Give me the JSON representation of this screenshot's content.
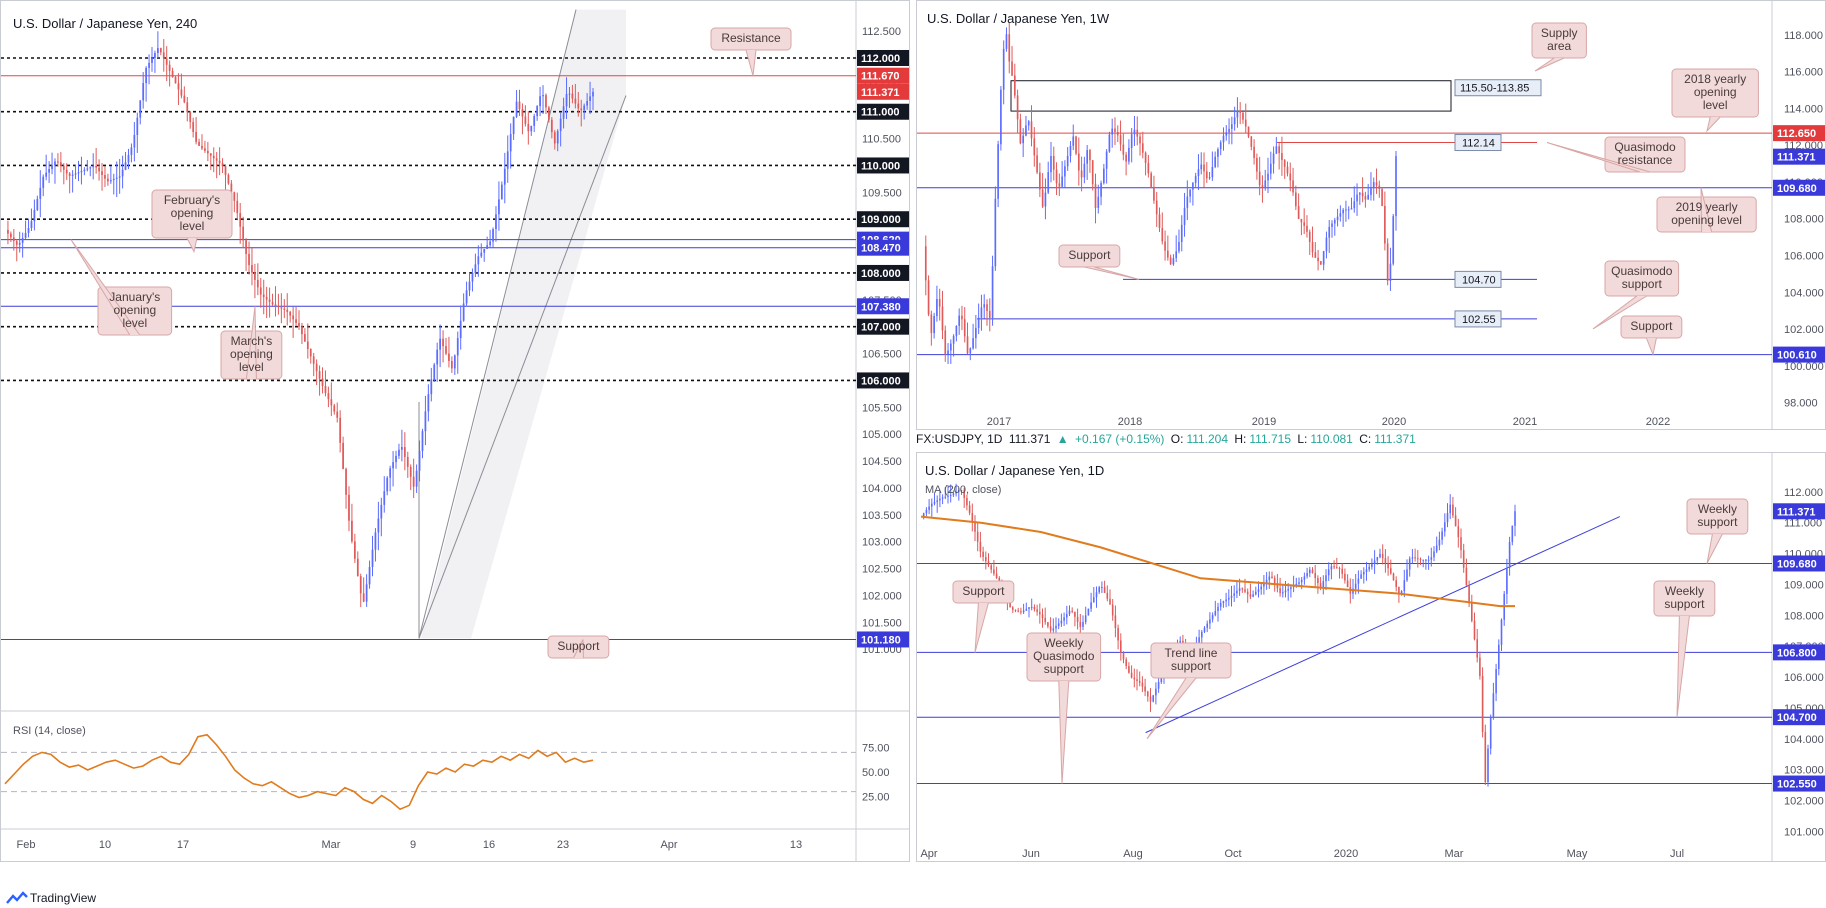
{
  "colors": {
    "bull": "#5b6cff",
    "bear": "#e05a5a",
    "resistance": "#e04848",
    "blue_level": "#3f3fd9",
    "dotted": "#111111",
    "annotation_bg": "#f2dada",
    "annotation_border": "#d8a6a6",
    "rsi": "#e07b1e",
    "ma": "#e07b1e",
    "channel_fill": "#f1f1f3"
  },
  "chart_data": [
    {
      "type": "candlestick",
      "title": "U.S. Dollar / Japanese Yen, 240",
      "ylim": [
        100.5,
        112.8
      ],
      "y_ticks": [
        "112.500",
        "112.000",
        "111.500",
        "111.000",
        "110.500",
        "110.000",
        "109.500",
        "109.000",
        "108.500",
        "108.000",
        "107.500",
        "107.000",
        "106.500",
        "106.000",
        "105.500",
        "105.000",
        "104.500",
        "104.000",
        "103.500",
        "103.000",
        "102.500",
        "102.000",
        "101.500",
        "101.000"
      ],
      "x_ticks": [
        "Feb",
        "10",
        "17",
        "Mar",
        "9",
        "16",
        "23",
        "Apr",
        "13"
      ],
      "price_path": [
        [
          0,
          108.8
        ],
        [
          3,
          108.5
        ],
        [
          6,
          108.9
        ],
        [
          9,
          109.8
        ],
        [
          12,
          110.1
        ],
        [
          15,
          109.8
        ],
        [
          18,
          109.9
        ],
        [
          21,
          110.0
        ],
        [
          24,
          109.7
        ],
        [
          27,
          109.8
        ],
        [
          30,
          110.4
        ],
        [
          33,
          111.8
        ],
        [
          36,
          112.2
        ],
        [
          39,
          111.7
        ],
        [
          42,
          111.2
        ],
        [
          45,
          110.4
        ],
        [
          48,
          110.2
        ],
        [
          51,
          110.0
        ],
        [
          54,
          109.3
        ],
        [
          57,
          108.2
        ],
        [
          60,
          107.6
        ],
        [
          63,
          107.4
        ],
        [
          66,
          107.3
        ],
        [
          69,
          107.0
        ],
        [
          72,
          106.4
        ],
        [
          75,
          105.8
        ],
        [
          78,
          105.3
        ],
        [
          81,
          103.2
        ],
        [
          84,
          101.8
        ],
        [
          87,
          103.2
        ],
        [
          90,
          104.3
        ],
        [
          93,
          104.8
        ],
        [
          96,
          104.0
        ],
        [
          99,
          105.6
        ],
        [
          102,
          106.8
        ],
        [
          105,
          106.2
        ],
        [
          108,
          107.6
        ],
        [
          111,
          108.3
        ],
        [
          114,
          108.6
        ],
        [
          117,
          109.8
        ],
        [
          120,
          111.2
        ],
        [
          123,
          110.6
        ],
        [
          126,
          111.4
        ],
        [
          129,
          110.4
        ],
        [
          132,
          111.4
        ],
        [
          135,
          111.0
        ],
        [
          138,
          111.37
        ]
      ],
      "levels": [
        {
          "label": "112.000",
          "value": 112.0,
          "style": "dotted",
          "tag": "dark"
        },
        {
          "label": "111.670",
          "value": 111.67,
          "style": "solid-red",
          "tag": "red"
        },
        {
          "label": "111.371",
          "value": 111.371,
          "style": "none",
          "tag": "red"
        },
        {
          "label": "111.000",
          "value": 111.0,
          "style": "dotted",
          "tag": "dark"
        },
        {
          "label": "110.000",
          "value": 110.0,
          "style": "dotted",
          "tag": "dark"
        },
        {
          "label": "109.000",
          "value": 109.0,
          "style": "dotted",
          "tag": "dark"
        },
        {
          "label": "108.620",
          "value": 108.62,
          "style": "solid-blue",
          "tag": "blue"
        },
        {
          "label": "108.470",
          "value": 108.47,
          "style": "solid-blue",
          "tag": "blue"
        },
        {
          "label": "108.000",
          "value": 108.0,
          "style": "dotted",
          "tag": "dark"
        },
        {
          "label": "107.380",
          "value": 107.38,
          "style": "solid-blue",
          "tag": "blue"
        },
        {
          "label": "107.000",
          "value": 107.0,
          "style": "dotted",
          "tag": "dark"
        },
        {
          "label": "106.000",
          "value": 106.0,
          "style": "dotted",
          "tag": "dark"
        },
        {
          "label": "101.180",
          "value": 101.18,
          "style": "solid-blue",
          "tag": "blue"
        }
      ],
      "annotations": [
        {
          "text": "Resistance",
          "lines": [
            "Resistance"
          ]
        },
        {
          "text": "February's opening level",
          "lines": [
            "February's",
            "opening",
            "level"
          ]
        },
        {
          "text": "January's opening level",
          "lines": [
            "January's",
            "opening",
            "level"
          ]
        },
        {
          "text": "March's opening level",
          "lines": [
            "March's",
            "opening",
            "level"
          ]
        },
        {
          "text": "Support",
          "lines": [
            "Support"
          ]
        }
      ],
      "rsi": {
        "title": "RSI (14, close)",
        "ylim": [
          0,
          100
        ],
        "y_ticks": [
          "75.00",
          "50.00",
          "25.00"
        ],
        "bands": [
          70,
          30
        ],
        "values": [
          38,
          48,
          58,
          66,
          70,
          68,
          60,
          55,
          57,
          52,
          56,
          60,
          62,
          58,
          54,
          56,
          62,
          66,
          60,
          58,
          68,
          86,
          88,
          78,
          66,
          52,
          44,
          38,
          36,
          40,
          34,
          28,
          24,
          26,
          30,
          28,
          26,
          34,
          30,
          22,
          18,
          26,
          20,
          12,
          16,
          36,
          50,
          48,
          54,
          50,
          58,
          56,
          62,
          60,
          66,
          62,
          68,
          64,
          72,
          66,
          70,
          60,
          64,
          60,
          62
        ]
      }
    },
    {
      "type": "candlestick",
      "title": "U.S. Dollar / Japanese Yen, 1W",
      "ylim": [
        97.0,
        119.4
      ],
      "y_ticks": [
        "118.000",
        "116.000",
        "114.000",
        "112.000",
        "110.000",
        "108.000",
        "106.000",
        "104.000",
        "102.000",
        "100.000",
        "98.000"
      ],
      "x_ticks": [
        "2017",
        "2018",
        "2019",
        "2020",
        "2021",
        "2022"
      ],
      "price_path": [
        [
          0,
          106.5
        ],
        [
          2,
          101.5
        ],
        [
          4,
          104.0
        ],
        [
          6,
          100.5
        ],
        [
          8,
          101.5
        ],
        [
          10,
          103.0
        ],
        [
          12,
          100.5
        ],
        [
          14,
          102.0
        ],
        [
          16,
          103.5
        ],
        [
          18,
          102.5
        ],
        [
          19,
          108.0
        ],
        [
          20,
          112.0
        ],
        [
          21,
          116.0
        ],
        [
          22,
          118.5
        ],
        [
          23,
          116.5
        ],
        [
          24,
          115.5
        ],
        [
          26,
          112.0
        ],
        [
          28,
          113.5
        ],
        [
          30,
          111.0
        ],
        [
          32,
          108.5
        ],
        [
          34,
          111.5
        ],
        [
          36,
          109.5
        ],
        [
          38,
          111.0
        ],
        [
          40,
          112.5
        ],
        [
          42,
          110.0
        ],
        [
          44,
          112.0
        ],
        [
          46,
          108.5
        ],
        [
          48,
          110.5
        ],
        [
          50,
          113.0
        ],
        [
          52,
          112.5
        ],
        [
          54,
          111.0
        ],
        [
          56,
          113.0
        ],
        [
          58,
          112.0
        ],
        [
          60,
          110.5
        ],
        [
          62,
          108.5
        ],
        [
          64,
          106.5
        ],
        [
          66,
          105.5
        ],
        [
          68,
          106.5
        ],
        [
          70,
          109.0
        ],
        [
          72,
          110.0
        ],
        [
          74,
          111.0
        ],
        [
          76,
          110.0
        ],
        [
          78,
          111.5
        ],
        [
          80,
          112.5
        ],
        [
          82,
          113.0
        ],
        [
          84,
          114.0
        ],
        [
          86,
          113.0
        ],
        [
          88,
          111.5
        ],
        [
          90,
          109.5
        ],
        [
          92,
          110.5
        ],
        [
          94,
          112.0
        ],
        [
          96,
          111.0
        ],
        [
          98,
          110.0
        ],
        [
          100,
          108.0
        ],
        [
          102,
          107.5
        ],
        [
          104,
          106.0
        ],
        [
          106,
          105.5
        ],
        [
          108,
          107.5
        ],
        [
          110,
          108.0
        ],
        [
          112,
          108.5
        ],
        [
          114,
          108.5
        ],
        [
          116,
          109.5
        ],
        [
          118,
          109.0
        ],
        [
          120,
          110.0
        ],
        [
          122,
          109.5
        ],
        [
          124,
          104.0
        ],
        [
          125,
          107.0
        ],
        [
          126,
          111.4
        ]
      ],
      "levels": [
        {
          "label": "112.650",
          "value": 112.65,
          "style": "solid-red",
          "tag": "red"
        },
        {
          "label": "111.371",
          "value": 111.371,
          "style": "none",
          "tag": "blue"
        },
        {
          "label": "109.680",
          "value": 109.68,
          "style": "solid-blue",
          "tag": "blue"
        },
        {
          "label": "100.610",
          "value": 100.61,
          "style": "solid-blue",
          "tag": "blue"
        }
      ],
      "level_boxes": [
        {
          "label": "112.14",
          "value": 112.14,
          "color": "red"
        },
        {
          "label": "104.70",
          "value": 104.7,
          "color": "blue"
        },
        {
          "label": "102.55",
          "value": 102.55,
          "color": "blue"
        }
      ],
      "supply_area": {
        "label": "115.50-113.85",
        "high": 115.5,
        "low": 113.85
      },
      "annotations": [
        {
          "text": "Supply area",
          "lines": [
            "Supply",
            "area"
          ]
        },
        {
          "text": "2018 yearly opening level",
          "lines": [
            "2018 yearly",
            "opening",
            "level"
          ]
        },
        {
          "text": "Quasimodo resistance",
          "lines": [
            "Quasimodo",
            "resistance"
          ]
        },
        {
          "text": "2019 yearly opening level",
          "lines": [
            "2019 yearly",
            "opening level"
          ]
        },
        {
          "text": "Support",
          "lines": [
            "Support"
          ]
        },
        {
          "text": "Quasimodo support",
          "lines": [
            "Quasimodo",
            "support"
          ]
        },
        {
          "text": "Support",
          "lines": [
            "Support"
          ]
        }
      ]
    },
    {
      "type": "candlestick",
      "title": "U.S. Dollar / Japanese Yen, 1D",
      "indicator": "MA (200, close)",
      "ylim": [
        100.3,
        113.0
      ],
      "y_ticks": [
        "112.000",
        "111.000",
        "110.000",
        "109.000",
        "108.000",
        "107.000",
        "106.000",
        "105.000",
        "104.000",
        "103.000",
        "102.000",
        "101.000"
      ],
      "x_ticks": [
        "Apr",
        "Jun",
        "Aug",
        "Oct",
        "2020",
        "Mar",
        "May",
        "Jul"
      ],
      "price_path": [
        [
          0,
          111.2
        ],
        [
          4,
          111.6
        ],
        [
          8,
          111.8
        ],
        [
          12,
          111.9
        ],
        [
          16,
          112.1
        ],
        [
          20,
          111.2
        ],
        [
          24,
          110.0
        ],
        [
          28,
          109.5
        ],
        [
          32,
          109.0
        ],
        [
          36,
          108.2
        ],
        [
          40,
          108.1
        ],
        [
          44,
          108.3
        ],
        [
          48,
          108.0
        ],
        [
          52,
          107.5
        ],
        [
          56,
          107.8
        ],
        [
          60,
          108.2
        ],
        [
          64,
          107.6
        ],
        [
          68,
          108.4
        ],
        [
          72,
          109.0
        ],
        [
          76,
          108.3
        ],
        [
          80,
          106.8
        ],
        [
          84,
          106.0
        ],
        [
          88,
          105.8
        ],
        [
          92,
          105.2
        ],
        [
          96,
          106.0
        ],
        [
          100,
          106.5
        ],
        [
          104,
          107.2
        ],
        [
          108,
          106.6
        ],
        [
          112,
          107.4
        ],
        [
          116,
          107.9
        ],
        [
          120,
          108.4
        ],
        [
          124,
          108.6
        ],
        [
          128,
          108.9
        ],
        [
          132,
          108.6
        ],
        [
          136,
          108.9
        ],
        [
          140,
          109.3
        ],
        [
          144,
          108.7
        ],
        [
          148,
          108.9
        ],
        [
          152,
          109.1
        ],
        [
          156,
          109.5
        ],
        [
          160,
          108.9
        ],
        [
          164,
          109.6
        ],
        [
          168,
          109.5
        ],
        [
          172,
          108.7
        ],
        [
          176,
          109.3
        ],
        [
          180,
          109.6
        ],
        [
          184,
          110.0
        ],
        [
          188,
          109.4
        ],
        [
          192,
          108.6
        ],
        [
          196,
          109.9
        ],
        [
          200,
          109.8
        ],
        [
          204,
          109.8
        ],
        [
          208,
          110.5
        ],
        [
          212,
          111.6
        ],
        [
          216,
          110.3
        ],
        [
          220,
          108.2
        ],
        [
          224,
          106.0
        ],
        [
          226,
          102.5
        ],
        [
          228,
          104.5
        ],
        [
          232,
          107.4
        ],
        [
          236,
          110.5
        ],
        [
          238,
          111.37
        ]
      ],
      "ma200": [
        [
          0,
          111.2
        ],
        [
          24,
          111.0
        ],
        [
          48,
          110.7
        ],
        [
          72,
          110.2
        ],
        [
          96,
          109.6
        ],
        [
          112,
          109.2
        ],
        [
          128,
          109.1
        ],
        [
          160,
          108.9
        ],
        [
          192,
          108.7
        ],
        [
          212,
          108.5
        ],
        [
          232,
          108.3
        ],
        [
          238,
          108.3
        ]
      ],
      "trendline": {
        "from": [
          90,
          104.2
        ],
        "to": [
          280,
          111.2
        ]
      },
      "levels": [
        {
          "label": "111.371",
          "value": 111.371,
          "style": "none",
          "tag": "blue"
        },
        {
          "label": "109.680",
          "value": 109.68,
          "style": "solid-blue",
          "tag": "blue"
        },
        {
          "label": "106.800",
          "value": 106.8,
          "style": "solid-blue",
          "tag": "blue"
        },
        {
          "label": "104.700",
          "value": 104.7,
          "style": "solid-blue",
          "tag": "blue"
        },
        {
          "label": "102.550",
          "value": 102.55,
          "style": "solid-blue",
          "tag": "blue"
        }
      ],
      "annotations": [
        {
          "text": "Weekly support",
          "lines": [
            "Weekly",
            "support"
          ]
        },
        {
          "text": "Support",
          "lines": [
            "Support"
          ]
        },
        {
          "text": "Weekly support",
          "lines": [
            "Weekly",
            "support"
          ]
        },
        {
          "text": "Weekly Quasimodo support",
          "lines": [
            "Weekly",
            "Quasimodo",
            "support"
          ]
        },
        {
          "text": "Trend line support",
          "lines": [
            "Trend line",
            "support"
          ]
        }
      ]
    }
  ],
  "daily_header": {
    "symbol": "FX:USDJPY, 1D",
    "last": "111.371",
    "arrow": "▲",
    "change": "+0.167 (+0.15%)",
    "o_label": "O:",
    "o": "111.204",
    "h_label": "H:",
    "h": "111.715",
    "l_label": "L:",
    "l": "110.081",
    "c_label": "C:",
    "c": "111.371"
  },
  "footer": {
    "brand": "TradingView"
  }
}
